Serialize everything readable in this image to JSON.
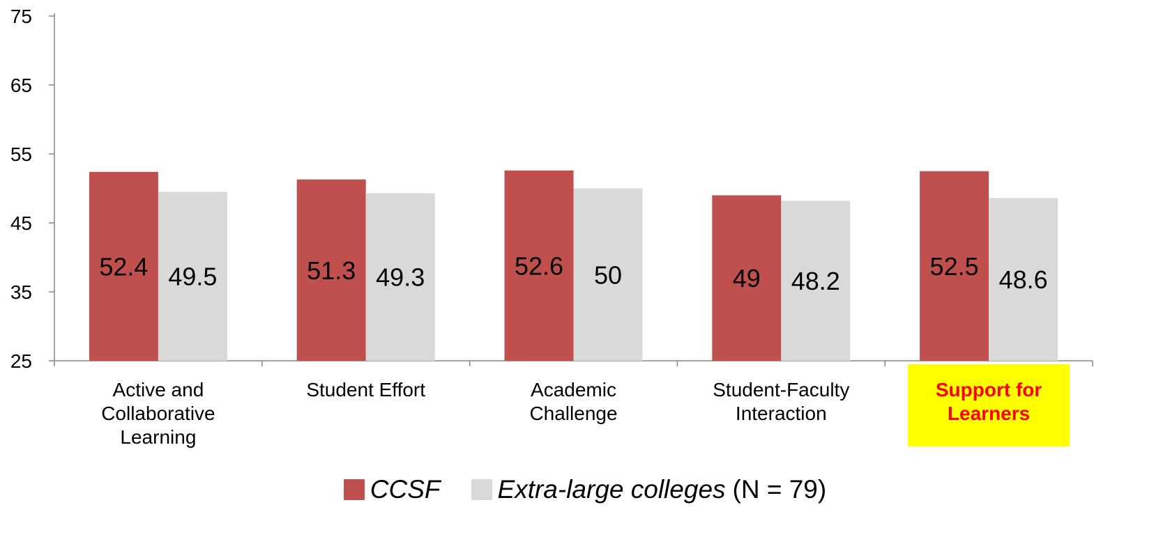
{
  "chart_data": {
    "type": "bar",
    "categories": [
      "Active and Collaborative Learning",
      "Student Effort",
      "Academic Challenge",
      "Student-Faculty Interaction",
      "Support for Learners"
    ],
    "category_lines": [
      [
        "Active and",
        "Collaborative",
        "Learning"
      ],
      [
        "Student Effort"
      ],
      [
        "Academic",
        "Challenge"
      ],
      [
        "Student-Faculty",
        "Interaction"
      ],
      [
        "Support for",
        "Learners"
      ]
    ],
    "highlighted_category": "Support for Learners",
    "highlight_colors": {
      "background": "#ffff00",
      "text": "#ff0000"
    },
    "series": [
      {
        "name": "CCSF",
        "color": "#c0504d",
        "values": [
          52.4,
          51.3,
          52.6,
          49,
          52.5
        ]
      },
      {
        "name": "Extra-large colleges",
        "color": "#d9d9d9",
        "values": [
          49.5,
          49.3,
          50,
          48.2,
          48.6
        ]
      }
    ],
    "ylim": [
      25,
      75
    ],
    "yticks": [
      "25",
      "35",
      "45",
      "55",
      "65",
      "75"
    ],
    "grid": false,
    "legend_position": "bottom",
    "legend_suffix": "(N = 79)"
  }
}
